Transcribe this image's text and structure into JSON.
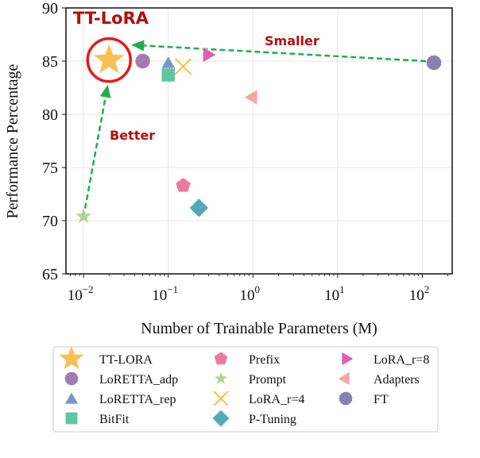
{
  "chart_data": {
    "type": "scatter",
    "xlabel": "Number of Trainable Parameters (M)",
    "ylabel": "Performance Percentage",
    "xscale": "log",
    "xlim": [
      0.0062,
      225
    ],
    "ylim": [
      65,
      90
    ],
    "xticks": [
      0.01,
      0.1,
      1,
      10,
      100
    ],
    "xtick_labels": [
      {
        "base": "10",
        "exp": "−2"
      },
      {
        "base": "10",
        "exp": "−1"
      },
      {
        "base": "10",
        "exp": "0"
      },
      {
        "base": "10",
        "exp": "1"
      },
      {
        "base": "10",
        "exp": "2"
      }
    ],
    "yticks": [
      65,
      70,
      75,
      80,
      85,
      90
    ],
    "grid": true,
    "legend_placement": "bottom",
    "series": [
      {
        "name": "TT-LORA",
        "marker": "star",
        "color": "#FBB940",
        "x": 0.02,
        "y": 85.1,
        "size": "large"
      },
      {
        "name": "LoRETTA_adp",
        "marker": "circle",
        "color": "#9B6BAA",
        "x": 0.05,
        "y": 85.0
      },
      {
        "name": "LoRETTA_rep",
        "marker": "triangle-up",
        "color": "#6A8CC0",
        "x": 0.1,
        "y": 84.8
      },
      {
        "name": "BitFit",
        "marker": "square",
        "color": "#4FBF96",
        "x": 0.1,
        "y": 83.7
      },
      {
        "name": "Prefix",
        "marker": "pentagon",
        "color": "#EC6B92",
        "x": 0.15,
        "y": 73.3
      },
      {
        "name": "Prompt",
        "marker": "star",
        "color": "#A9CF88",
        "x": 0.01,
        "y": 70.4
      },
      {
        "name": "LoRA_r=4",
        "marker": "x",
        "color": "#F9C23C",
        "x": 0.15,
        "y": 84.5
      },
      {
        "name": "P-Tuning",
        "marker": "diamond",
        "color": "#3FA0AE",
        "x": 0.23,
        "y": 71.2
      },
      {
        "name": "LoRA_r=8",
        "marker": "triangle-right",
        "color": "#D94FAE",
        "x": 0.29,
        "y": 85.6
      },
      {
        "name": "Adapters",
        "marker": "triangle-left",
        "color": "#F59E96",
        "x": 1.0,
        "y": 81.6
      },
      {
        "name": "FT",
        "marker": "circle",
        "color": "#7B74A8",
        "x": 137,
        "y": 84.85
      }
    ],
    "annotations": {
      "highlight_label": "TT-LoRA",
      "smaller_label": "Smaller",
      "better_label": "Better",
      "highlight_color": "#E8191B",
      "arrow_color": "#1DB04B"
    }
  }
}
